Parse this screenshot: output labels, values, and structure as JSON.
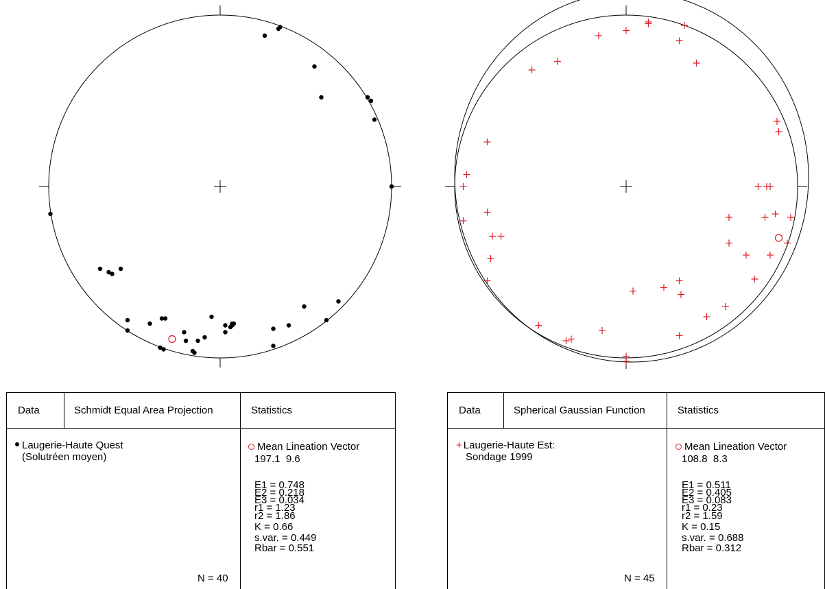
{
  "colors": {
    "ink": "#000000",
    "accent": "#e01b24"
  },
  "left": {
    "header": {
      "data": "Data",
      "method": "Schmidt Equal Area Projection",
      "stats": "Statistics"
    },
    "dataset": {
      "line1": "Laugerie-Haute Quest",
      "line2": "(Solutréen moyen)",
      "symbol": "filled-dot"
    },
    "n_label": "N = 40",
    "mean_label": "Mean Lineation Vector",
    "mean_value": "197.1  9.6",
    "stats": [
      "E1 = 0.748",
      "E2 = 0.218",
      "E3 = 0.034",
      "r1 = 1.23",
      "r2 = 1.86",
      "K = 0.66",
      "s.var. = 0.449",
      "Rbar = 0.551"
    ]
  },
  "right": {
    "header": {
      "data": "Data",
      "method": "Spherical Gaussian Function",
      "stats": "Statistics"
    },
    "dataset": {
      "line1": "Laugerie-Haute Est:",
      "line2": "Sondage 1999",
      "symbol": "red-plus"
    },
    "n_label": "N = 45",
    "mean_label": "Mean Lineation Vector",
    "mean_value": "108.8  8.3",
    "stats": [
      "E1 = 0.511",
      "E2 = 0.405",
      "E3 = 0.083",
      "r1 = 0.23",
      "r2 = 1.59",
      "K = 0.15",
      "s.var. = 0.688",
      "Rbar = 0.312"
    ]
  },
  "chart_data": [
    {
      "type": "scatter",
      "title": "Schmidt Equal Area Projection",
      "coordinate_system": "unit disc (x east, y north), radius 1",
      "marker": "filled-dot",
      "points": [
        [
          0.26,
          0.88
        ],
        [
          0.34,
          0.92
        ],
        [
          0.35,
          0.93
        ],
        [
          0.55,
          0.7
        ],
        [
          0.59,
          0.52
        ],
        [
          0.86,
          0.52
        ],
        [
          0.88,
          0.5
        ],
        [
          0.9,
          0.39
        ],
        [
          1.0,
          0.0
        ],
        [
          -0.99,
          -0.16
        ],
        [
          -0.7,
          -0.48
        ],
        [
          -0.65,
          -0.5
        ],
        [
          -0.63,
          -0.51
        ],
        [
          -0.58,
          -0.48
        ],
        [
          -0.54,
          -0.84
        ],
        [
          -0.41,
          -0.8
        ],
        [
          -0.34,
          -0.77
        ],
        [
          -0.32,
          -0.77
        ],
        [
          -0.35,
          -0.94
        ],
        [
          -0.33,
          -0.95
        ],
        [
          -0.21,
          -0.85
        ],
        [
          -0.2,
          -0.9
        ],
        [
          -0.16,
          -0.96
        ],
        [
          -0.15,
          -0.97
        ],
        [
          -0.13,
          -0.9
        ],
        [
          -0.09,
          -0.88
        ],
        [
          -0.05,
          -0.76
        ],
        [
          0.03,
          -0.85
        ],
        [
          0.03,
          -0.81
        ],
        [
          0.07,
          -0.81
        ],
        [
          0.08,
          -0.8
        ],
        [
          0.07,
          -0.8
        ],
        [
          0.31,
          -0.83
        ],
        [
          0.31,
          -0.93
        ],
        [
          0.4,
          -0.81
        ],
        [
          0.49,
          -0.7
        ],
        [
          0.62,
          -0.78
        ],
        [
          0.69,
          -0.67
        ],
        [
          -0.54,
          -0.78
        ],
        [
          0.06,
          -0.82
        ]
      ],
      "mean_vector": {
        "point": [
          -0.28,
          -0.89
        ],
        "marker": "open-circle",
        "color": "#e01b24"
      }
    },
    {
      "type": "scatter",
      "title": "Spherical Gaussian Function",
      "coordinate_system": "unit disc (x east, y north), radius 1",
      "marker": "red-plus",
      "points": [
        [
          -0.55,
          0.68
        ],
        [
          -0.4,
          0.73
        ],
        [
          -0.16,
          0.88
        ],
        [
          0.0,
          0.91
        ],
        [
          0.13,
          0.95
        ],
        [
          0.13,
          0.96
        ],
        [
          0.34,
          0.94
        ],
        [
          0.31,
          0.85
        ],
        [
          0.41,
          0.72
        ],
        [
          0.88,
          0.38
        ],
        [
          0.89,
          0.32
        ],
        [
          -0.81,
          0.26
        ],
        [
          -0.93,
          0.07
        ],
        [
          -0.95,
          0.0
        ],
        [
          -0.95,
          -0.2
        ],
        [
          -0.81,
          -0.15
        ],
        [
          -0.78,
          -0.29
        ],
        [
          -0.73,
          -0.29
        ],
        [
          -0.79,
          -0.42
        ],
        [
          -0.81,
          -0.55
        ],
        [
          0.77,
          0.0
        ],
        [
          0.82,
          0.0
        ],
        [
          0.84,
          0.0
        ],
        [
          0.81,
          -0.18
        ],
        [
          0.87,
          -0.16
        ],
        [
          0.96,
          -0.18
        ],
        [
          0.6,
          -0.18
        ],
        [
          0.6,
          -0.33
        ],
        [
          0.7,
          -0.4
        ],
        [
          0.84,
          -0.4
        ],
        [
          0.75,
          -0.54
        ],
        [
          0.94,
          -0.33
        ],
        [
          0.31,
          -0.55
        ],
        [
          0.32,
          -0.63
        ],
        [
          0.22,
          -0.59
        ],
        [
          0.04,
          -0.61
        ],
        [
          0.58,
          -0.7
        ],
        [
          0.47,
          -0.76
        ],
        [
          -0.51,
          -0.81
        ],
        [
          -0.32,
          -0.89
        ],
        [
          -0.14,
          -0.84
        ],
        [
          0.31,
          -0.87
        ],
        [
          0.0,
          -0.99
        ],
        [
          0.0,
          -1.02
        ],
        [
          -0.35,
          -0.9
        ]
      ],
      "mean_vector": {
        "point": [
          0.89,
          -0.3
        ],
        "marker": "open-circle",
        "color": "#e01b24"
      }
    }
  ]
}
